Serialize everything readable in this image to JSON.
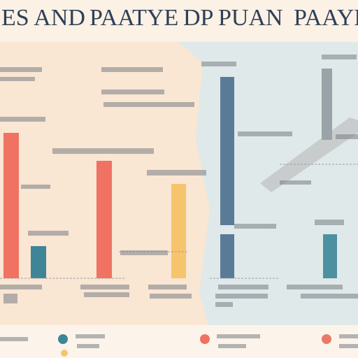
{
  "header": {
    "title_parts": [
      "ES AND",
      "PAATYE",
      "DP",
      "PUAN",
      "PAAYD"
    ]
  }
}
